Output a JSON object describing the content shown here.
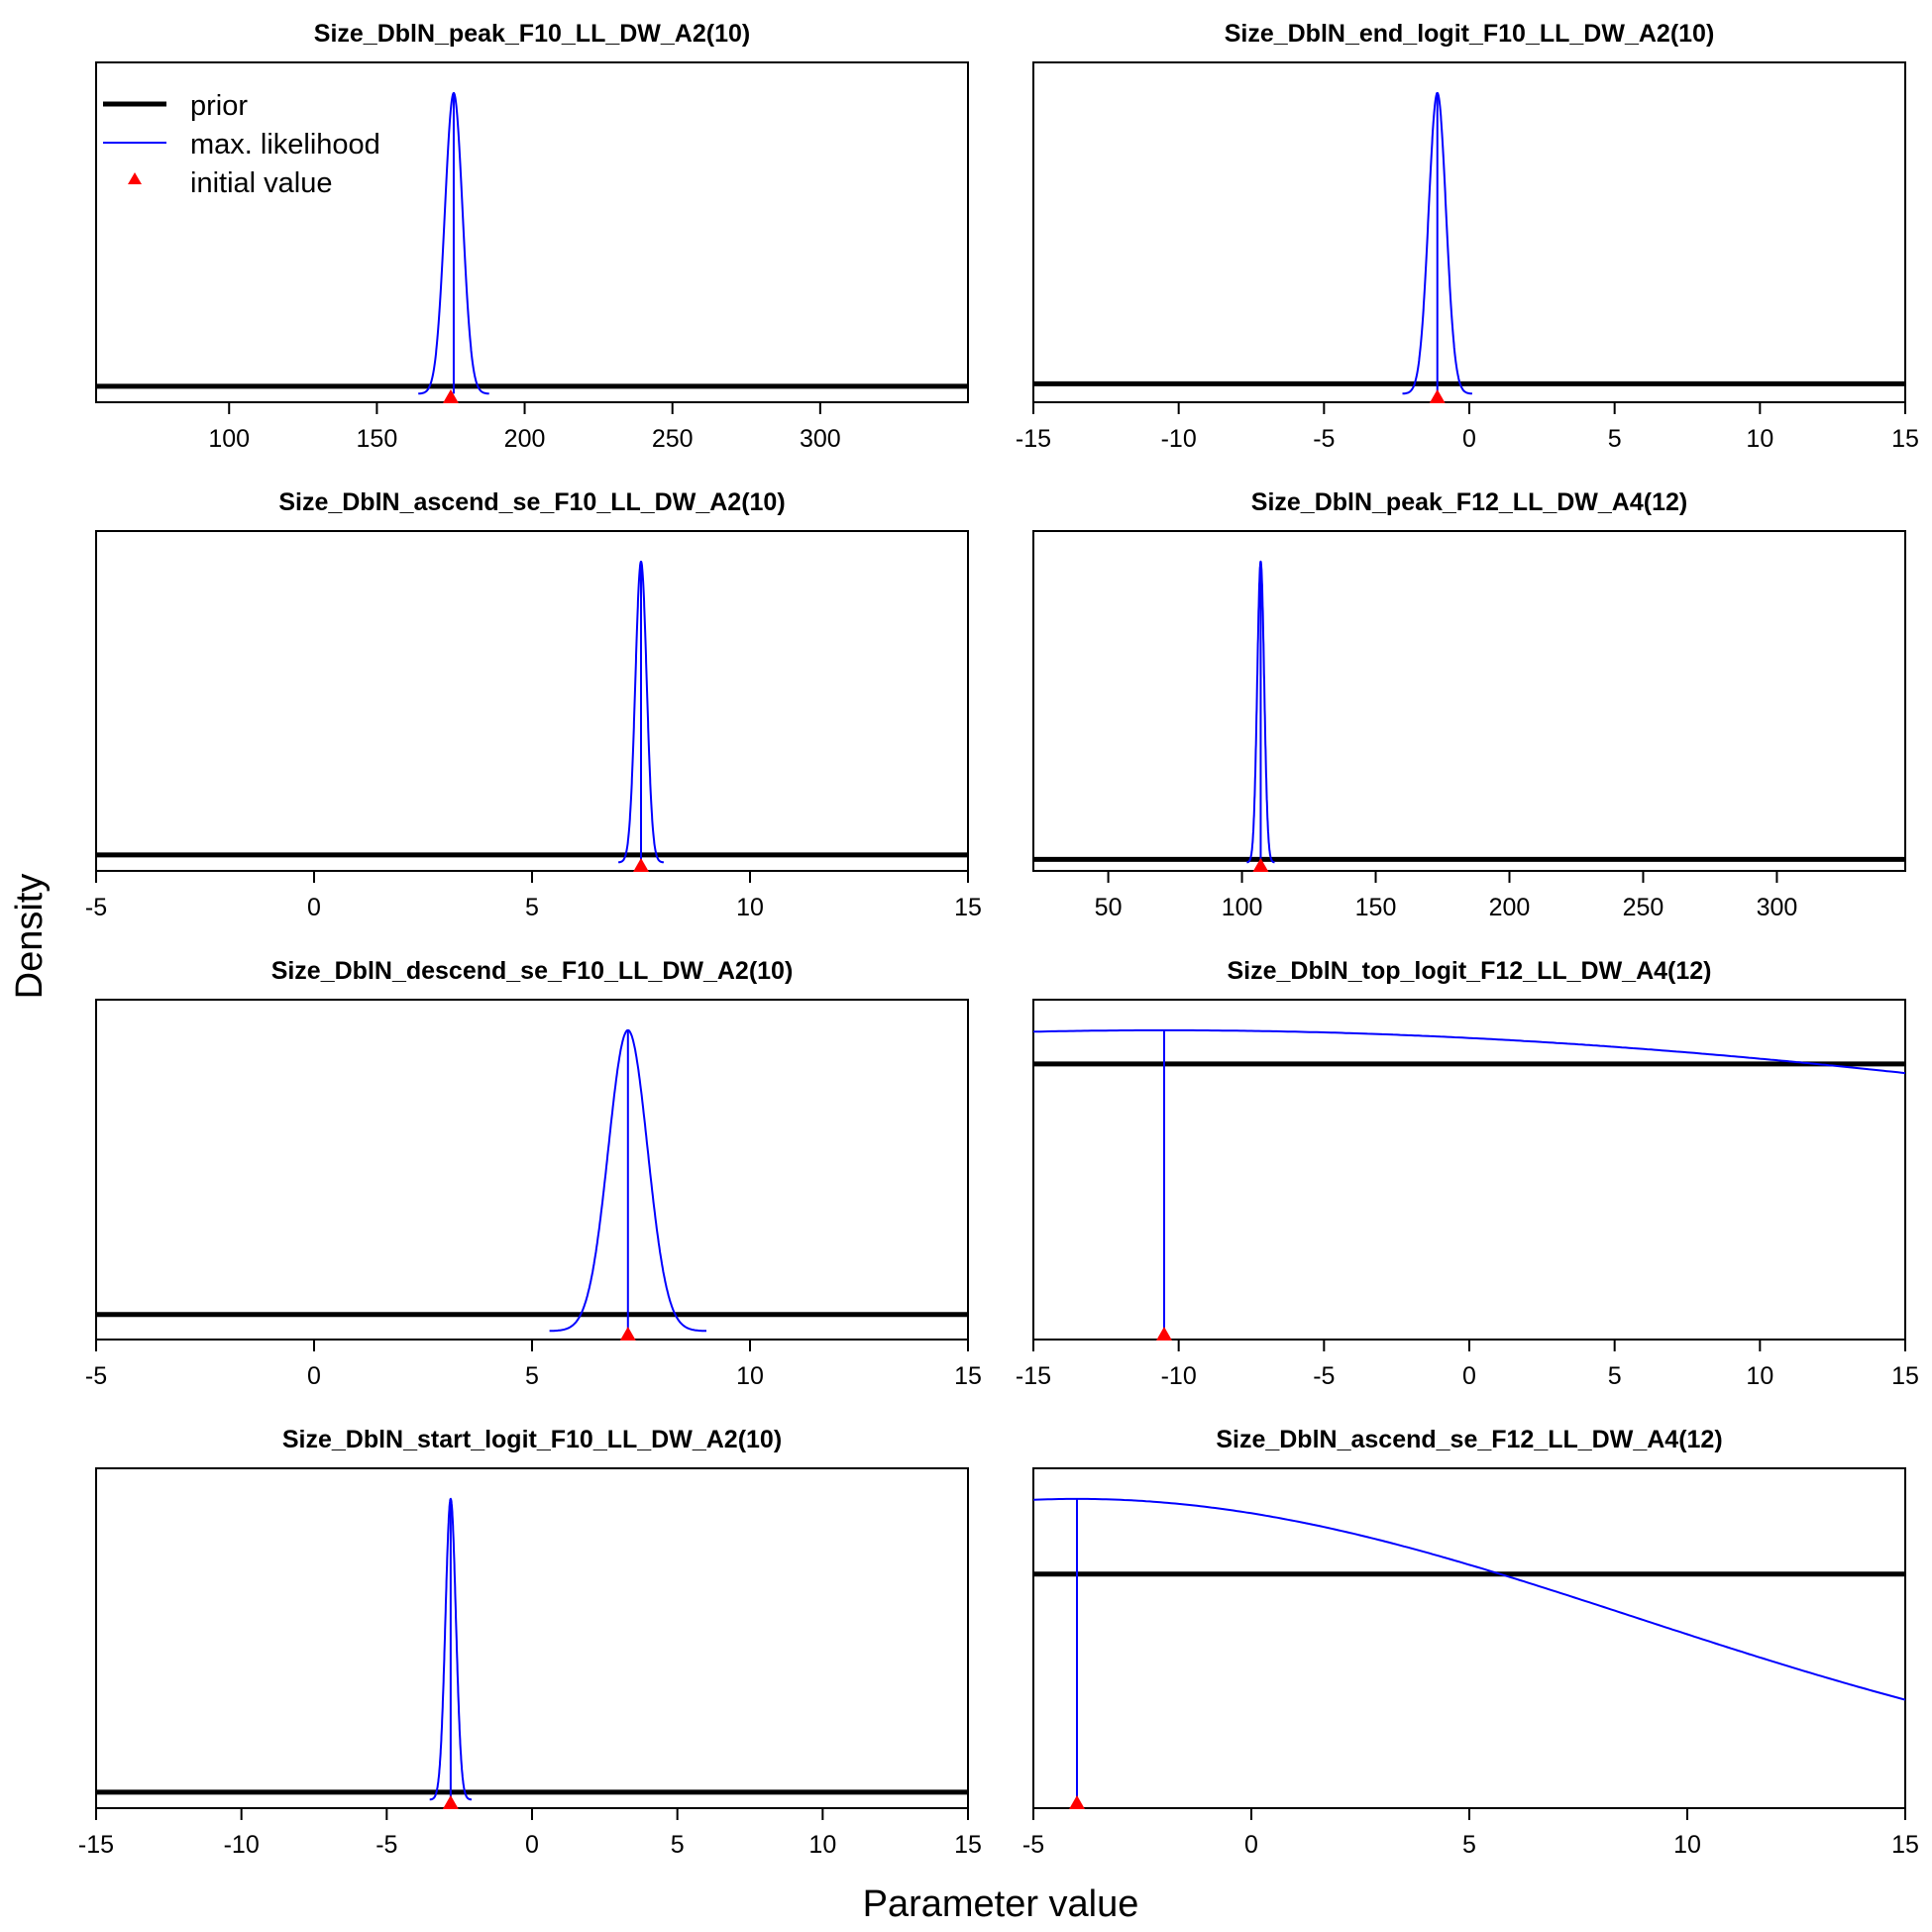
{
  "figure": {
    "xlabel": "Parameter value",
    "ylabel": "Density",
    "legend": {
      "position": "top-left of first panel",
      "entries": [
        {
          "label": "prior",
          "style": "thick line",
          "color": "#000000"
        },
        {
          "label": "max. likelihood",
          "style": "thin line",
          "color": "#0000ff"
        },
        {
          "label": "initial value",
          "style": "triangle marker",
          "color": "#ff0000"
        }
      ]
    },
    "colors": {
      "prior": "#000000",
      "mle": "#0000ff",
      "init": "#ff0000"
    }
  },
  "chart_data": [
    {
      "type": "line",
      "title": "Size_DblN_peak_F10_LL_DW_A2(10)",
      "xlim": [
        55,
        350
      ],
      "xticks": [
        100,
        150,
        200,
        250,
        300
      ],
      "prior_level": 0.025,
      "mle": {
        "mean": 176,
        "sd": 3.0
      },
      "initial_value": 175
    },
    {
      "type": "line",
      "title": "Size_DblN_end_logit_F10_LL_DW_A2(10)",
      "xlim": [
        -15,
        15
      ],
      "xticks": [
        -15,
        -10,
        -5,
        0,
        5,
        10,
        15
      ],
      "prior_level": 0.033,
      "mle": {
        "mean": -1.1,
        "sd": 0.3
      },
      "initial_value": -1.1
    },
    {
      "type": "line",
      "title": "Size_DblN_ascend_se_F10_LL_DW_A2(10)",
      "xlim": [
        -5,
        15
      ],
      "xticks": [
        -5,
        0,
        5,
        10,
        15
      ],
      "prior_level": 0.025,
      "mle": {
        "mean": 7.5,
        "sd": 0.13
      },
      "initial_value": 7.5
    },
    {
      "type": "line",
      "title": "Size_DblN_peak_F12_LL_DW_A4(12)",
      "xlim": [
        22,
        348
      ],
      "xticks": [
        50,
        100,
        150,
        200,
        250,
        300
      ],
      "prior_level": 0.01,
      "mle": {
        "mean": 107,
        "sd": 1.3
      },
      "initial_value": 107
    },
    {
      "type": "line",
      "title": "Size_DblN_descend_se_F10_LL_DW_A2(10)",
      "xlim": [
        -5,
        15
      ],
      "xticks": [
        -5,
        0,
        5,
        10,
        15
      ],
      "prior_level": 0.055,
      "mle": {
        "mean": 7.2,
        "sd": 0.45
      },
      "initial_value": 7.2
    },
    {
      "type": "line",
      "title": "Size_DblN_top_logit_F12_LL_DW_A4(12)",
      "xlim": [
        -15,
        15
      ],
      "xticks": [
        -15,
        -10,
        -5,
        0,
        5,
        10,
        15
      ],
      "prior_level": 0.888,
      "mle": {
        "mean": -10.5,
        "sd": 46
      },
      "initial_value": -10.5
    },
    {
      "type": "line",
      "title": "Size_DblN_start_logit_F10_LL_DW_A2(10)",
      "xlim": [
        -15,
        15
      ],
      "xticks": [
        -15,
        -10,
        -5,
        0,
        5,
        10,
        15
      ],
      "prior_level": 0.025,
      "mle": {
        "mean": -2.8,
        "sd": 0.18
      },
      "initial_value": -2.8
    },
    {
      "type": "line",
      "title": "Size_DblN_ascend_se_F12_LL_DW_A4(12)",
      "xlim": [
        -5,
        15
      ],
      "xticks": [
        -5,
        0,
        5,
        10,
        15
      ],
      "prior_level": 0.75,
      "mle": {
        "mean": -4.0,
        "sd": 12.8
      },
      "initial_value": -4.0
    }
  ]
}
